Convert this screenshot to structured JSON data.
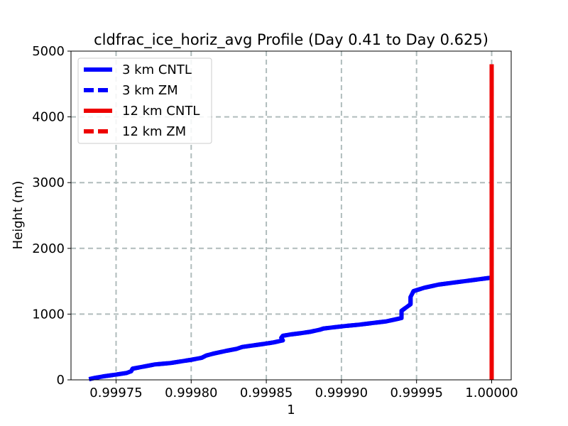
{
  "chart_data": {
    "type": "line",
    "title": "cldfrac_ice_horiz_avg Profile (Day 0.41 to Day 0.625)",
    "xlabel": "1",
    "ylabel": "Height (m)",
    "xlim": [
      0.99972,
      1.000013
    ],
    "ylim": [
      0,
      5000
    ],
    "xticks": [
      0.99975,
      0.9998,
      0.99985,
      0.9999,
      0.99995,
      1.0
    ],
    "xtick_labels": [
      "0.99975",
      "0.99980",
      "0.99985",
      "0.99990",
      "0.99995",
      "1.00000"
    ],
    "yticks": [
      0,
      1000,
      2000,
      3000,
      4000,
      5000
    ],
    "ytick_labels": [
      "0",
      "1000",
      "2000",
      "3000",
      "4000",
      "5000"
    ],
    "grid": true,
    "legend_position": "top-left",
    "series": [
      {
        "name": "3 km CNTL",
        "color": "#0000ff",
        "style": "solid",
        "x": [
          0.999732,
          0.999736,
          0.999742,
          0.99975,
          0.999757,
          0.99976,
          0.999761,
          0.999768,
          0.999776,
          0.999786,
          0.999793,
          0.9998,
          0.999807,
          0.99981,
          0.999815,
          0.999823,
          0.99983,
          0.999834,
          0.99984,
          0.999848,
          0.999855,
          0.999861,
          0.99986,
          0.999861,
          0.999866,
          0.999873,
          0.999879,
          0.999886,
          0.999888,
          0.999895,
          0.999903,
          0.999912,
          0.999921,
          0.99993,
          0.999936,
          0.99994,
          0.99994,
          0.999946,
          0.999946,
          0.999948,
          0.999955,
          0.999965,
          0.999975,
          0.999985,
          0.999995,
          1.0
        ],
        "y": [
          10,
          30,
          55,
          80,
          105,
          130,
          170,
          200,
          235,
          255,
          280,
          305,
          335,
          370,
          400,
          440,
          470,
          500,
          520,
          545,
          570,
          600,
          640,
          670,
          690,
          710,
          730,
          765,
          780,
          800,
          820,
          840,
          865,
          890,
          920,
          940,
          1050,
          1150,
          1260,
          1350,
          1400,
          1450,
          1480,
          1510,
          1540,
          1555
        ]
      },
      {
        "name": "3 km ZM",
        "color": "#0000ff",
        "style": "dashed",
        "x": [
          0.999732,
          0.999736,
          0.999742,
          0.99975,
          0.999757,
          0.99976,
          0.999761,
          0.999768,
          0.999776,
          0.999786,
          0.999793,
          0.9998,
          0.999807,
          0.99981,
          0.999815,
          0.999823,
          0.99983,
          0.999834,
          0.99984,
          0.999848,
          0.999855,
          0.999861,
          0.99986,
          0.999861,
          0.999866,
          0.999873,
          0.999879,
          0.999886,
          0.999888,
          0.999895,
          0.999903,
          0.999912,
          0.999921,
          0.99993,
          0.999936,
          0.99994,
          0.99994,
          0.999946,
          0.999946,
          0.999948,
          0.999955,
          0.999965,
          0.999975,
          0.999985,
          0.999995,
          1.0
        ],
        "y": [
          10,
          30,
          55,
          80,
          105,
          130,
          170,
          200,
          235,
          255,
          280,
          305,
          335,
          370,
          400,
          440,
          470,
          500,
          520,
          545,
          570,
          600,
          640,
          670,
          690,
          710,
          730,
          765,
          780,
          800,
          820,
          840,
          865,
          890,
          920,
          940,
          1050,
          1150,
          1260,
          1350,
          1400,
          1450,
          1480,
          1510,
          1540,
          1555
        ]
      },
      {
        "name": "12 km CNTL",
        "color": "#ee0000",
        "style": "solid",
        "x": [
          1.0,
          1.0
        ],
        "y": [
          0,
          4800
        ]
      },
      {
        "name": "12 km ZM",
        "color": "#ee0000",
        "style": "dashed",
        "x": [
          1.0,
          1.0
        ],
        "y": [
          0,
          4800
        ]
      }
    ]
  }
}
